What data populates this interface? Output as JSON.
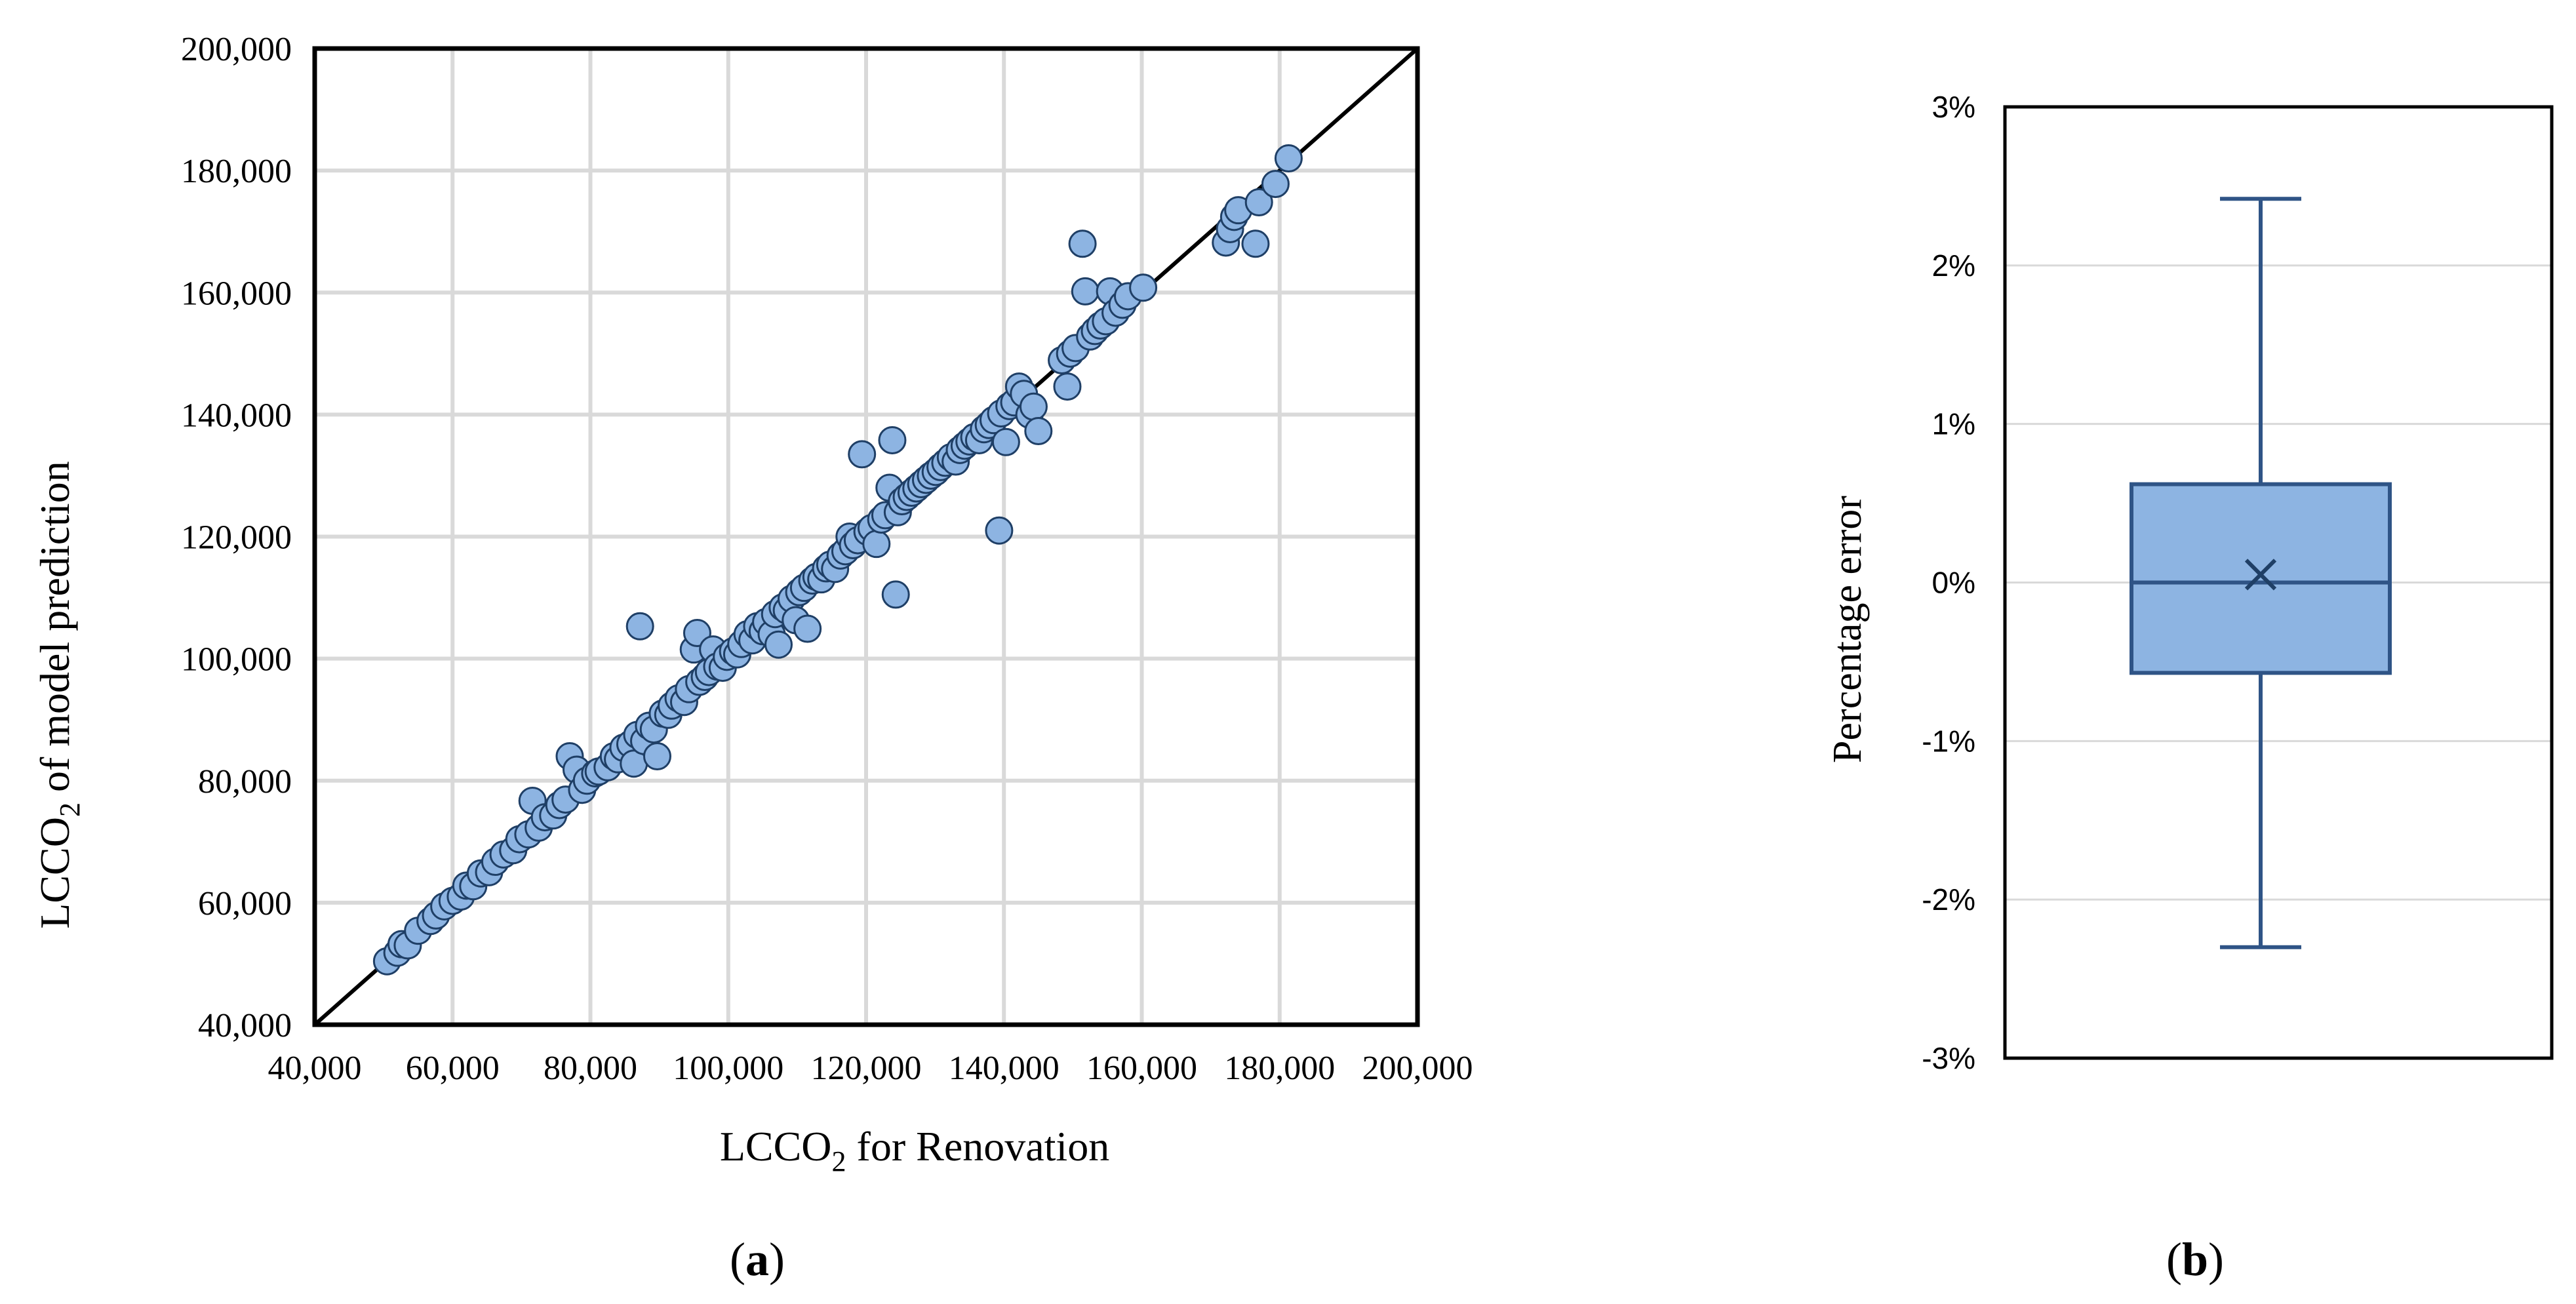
{
  "chart_data": [
    {
      "type": "scatter",
      "panel_label": "a",
      "xlabel": {
        "prefix": "LCCO",
        "sub": "2",
        "suffix": " for Renovation"
      },
      "ylabel": {
        "prefix": "LCCO",
        "sub": "2",
        "suffix": " of model prediction"
      },
      "xlim": [
        40000,
        200000
      ],
      "ylim": [
        40000,
        200000
      ],
      "xticks": [
        40000,
        60000,
        80000,
        100000,
        120000,
        140000,
        160000,
        180000,
        200000
      ],
      "yticks": [
        40000,
        60000,
        80000,
        100000,
        120000,
        140000,
        160000,
        180000,
        200000
      ],
      "xtick_labels": [
        "40,000",
        "60,000",
        "80,000",
        "100,000",
        "120,000",
        "140,000",
        "160,000",
        "180,000",
        "200,000"
      ],
      "ytick_labels": [
        "40,000",
        "60,000",
        "80,000",
        "100,000",
        "120,000",
        "140,000",
        "160,000",
        "180,000",
        "200,000"
      ],
      "grid": true,
      "reference_line": {
        "from": [
          40000,
          40000
        ],
        "to": [
          200000,
          200000
        ]
      },
      "marker_color": "#8db4e2",
      "marker_edge": "#1f3f66",
      "points": [
        [
          50500,
          50400
        ],
        [
          52000,
          51800
        ],
        [
          52600,
          53200
        ],
        [
          53500,
          53000
        ],
        [
          55000,
          55400
        ],
        [
          56800,
          57000
        ],
        [
          57600,
          57900
        ],
        [
          58800,
          59400
        ],
        [
          60000,
          60300
        ],
        [
          61200,
          61000
        ],
        [
          62000,
          62800
        ],
        [
          63000,
          62700
        ],
        [
          64100,
          64800
        ],
        [
          65300,
          65000
        ],
        [
          66200,
          66700
        ],
        [
          67400,
          67900
        ],
        [
          68800,
          68600
        ],
        [
          69700,
          70400
        ],
        [
          71000,
          71200
        ],
        [
          71600,
          76700
        ],
        [
          72500,
          72300
        ],
        [
          73400,
          74000
        ],
        [
          74600,
          74300
        ],
        [
          75500,
          76000
        ],
        [
          76400,
          76900
        ],
        [
          77000,
          84000
        ],
        [
          78000,
          81800
        ],
        [
          78800,
          78500
        ],
        [
          79500,
          80000
        ],
        [
          80700,
          81200
        ],
        [
          81200,
          81500
        ],
        [
          82500,
          82200
        ],
        [
          83400,
          84000
        ],
        [
          84000,
          83500
        ],
        [
          84800,
          85400
        ],
        [
          85800,
          86000
        ],
        [
          86300,
          82800
        ],
        [
          86800,
          87500
        ],
        [
          87200,
          105300
        ],
        [
          87800,
          86500
        ],
        [
          88500,
          89000
        ],
        [
          89200,
          88400
        ],
        [
          89700,
          84000
        ],
        [
          90500,
          91000
        ],
        [
          91300,
          90800
        ],
        [
          91800,
          92300
        ],
        [
          92800,
          93500
        ],
        [
          93600,
          92900
        ],
        [
          94300,
          95000
        ],
        [
          95000,
          101500
        ],
        [
          95500,
          104200
        ],
        [
          95800,
          96200
        ],
        [
          96600,
          97000
        ],
        [
          97200,
          97800
        ],
        [
          97800,
          101500
        ],
        [
          98400,
          98700
        ],
        [
          99200,
          98500
        ],
        [
          99800,
          100300
        ],
        [
          100700,
          101200
        ],
        [
          101300,
          100700
        ],
        [
          101900,
          102400
        ],
        [
          102800,
          104000
        ],
        [
          103500,
          103000
        ],
        [
          104200,
          105300
        ],
        [
          105000,
          104500
        ],
        [
          105500,
          106000
        ],
        [
          106300,
          104000
        ],
        [
          106800,
          107300
        ],
        [
          107300,
          102300
        ],
        [
          107900,
          108400
        ],
        [
          108500,
          107900
        ],
        [
          109200,
          109800
        ],
        [
          109800,
          106300
        ],
        [
          110300,
          110900
        ],
        [
          111000,
          111600
        ],
        [
          111500,
          104900
        ],
        [
          112200,
          112800
        ],
        [
          112800,
          113400
        ],
        [
          113500,
          113000
        ],
        [
          114200,
          114800
        ],
        [
          114800,
          115400
        ],
        [
          115500,
          114700
        ],
        [
          116300,
          116900
        ],
        [
          117000,
          117600
        ],
        [
          117600,
          120000
        ],
        [
          118100,
          118600
        ],
        [
          118800,
          119400
        ],
        [
          119400,
          133500
        ],
        [
          120200,
          120800
        ],
        [
          120800,
          121400
        ],
        [
          121500,
          118800
        ],
        [
          122200,
          122800
        ],
        [
          122800,
          123500
        ],
        [
          123400,
          128000
        ],
        [
          123800,
          135800
        ],
        [
          124300,
          110500
        ],
        [
          124600,
          124000
        ],
        [
          125200,
          125800
        ],
        [
          125900,
          126500
        ],
        [
          126600,
          127200
        ],
        [
          127300,
          127900
        ],
        [
          128000,
          128600
        ],
        [
          128700,
          129300
        ],
        [
          129400,
          130000
        ],
        [
          130100,
          130600
        ],
        [
          130800,
          131400
        ],
        [
          131500,
          132100
        ],
        [
          132300,
          133000
        ],
        [
          133000,
          132300
        ],
        [
          133600,
          134200
        ],
        [
          134300,
          134900
        ],
        [
          135000,
          135600
        ],
        [
          135700,
          136300
        ],
        [
          136400,
          135800
        ],
        [
          137100,
          137600
        ],
        [
          137800,
          138300
        ],
        [
          138500,
          139100
        ],
        [
          139300,
          121000
        ],
        [
          139600,
          140200
        ],
        [
          140300,
          135500
        ],
        [
          140800,
          141400
        ],
        [
          141500,
          142000
        ],
        [
          142200,
          144600
        ],
        [
          142900,
          143400
        ],
        [
          143700,
          140000
        ],
        [
          144300,
          141300
        ],
        [
          145000,
          137300
        ],
        [
          148400,
          148900
        ],
        [
          149200,
          144600
        ],
        [
          149600,
          150000
        ],
        [
          150400,
          150900
        ],
        [
          151400,
          168000
        ],
        [
          151800,
          160200
        ],
        [
          152500,
          152800
        ],
        [
          153200,
          153700
        ],
        [
          154000,
          154600
        ],
        [
          154800,
          155300
        ],
        [
          155400,
          160200
        ],
        [
          156200,
          156700
        ],
        [
          157200,
          158000
        ],
        [
          158000,
          159400
        ],
        [
          160200,
          160800
        ],
        [
          172200,
          168200
        ],
        [
          172800,
          170400
        ],
        [
          173400,
          172400
        ],
        [
          174000,
          173500
        ],
        [
          176500,
          168000
        ],
        [
          177000,
          174800
        ],
        [
          179400,
          177800
        ],
        [
          181300,
          182000
        ]
      ]
    },
    {
      "type": "box",
      "panel_label": "b",
      "ylabel": "Percentage error",
      "ylim": [
        -3,
        3
      ],
      "yticks": [
        -3,
        -2,
        -1,
        0,
        1,
        2,
        3
      ],
      "ytick_labels": [
        "-3%",
        "-2%",
        "-1%",
        "0%",
        "1%",
        "2%",
        "3%"
      ],
      "grid": true,
      "box": {
        "whisker_low": -2.3,
        "q1": -0.57,
        "median": 0.0,
        "q3": 0.62,
        "whisker_high": 2.42,
        "mean": 0.05
      },
      "box_fill": "#8db4e2",
      "box_edge": "#2f5486"
    }
  ]
}
